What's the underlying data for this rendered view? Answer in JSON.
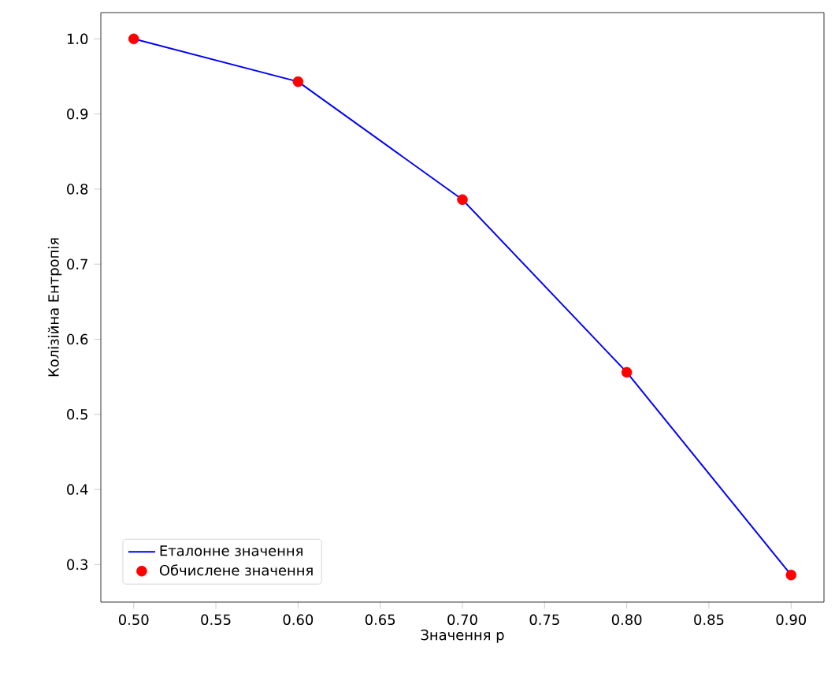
{
  "chart_data": {
    "type": "line",
    "xlabel": "Значення p",
    "ylabel": "Колізійна Ентропія",
    "x": [
      0.5,
      0.6,
      0.7,
      0.8,
      0.9
    ],
    "series": [
      {
        "name": "Еталонне значення",
        "color": "#0000ff",
        "marker": "none",
        "values": [
          1.0,
          0.943,
          0.786,
          0.556,
          0.286
        ]
      },
      {
        "name": "Обчислене значення",
        "type": "scatter",
        "color": "#ff0000",
        "marker": "circle",
        "values": [
          1.0,
          0.943,
          0.786,
          0.556,
          0.286
        ]
      }
    ],
    "xlim": [
      0.48,
      0.92
    ],
    "ylim": [
      0.25,
      1.035
    ],
    "xticks": [
      {
        "value": 0.5,
        "label": "0.50"
      },
      {
        "value": 0.55,
        "label": "0.55"
      },
      {
        "value": 0.6,
        "label": "0.60"
      },
      {
        "value": 0.65,
        "label": "0.65"
      },
      {
        "value": 0.7,
        "label": "0.70"
      },
      {
        "value": 0.75,
        "label": "0.75"
      },
      {
        "value": 0.8,
        "label": "0.80"
      },
      {
        "value": 0.85,
        "label": "0.85"
      },
      {
        "value": 0.9,
        "label": "0.90"
      }
    ],
    "yticks": [
      {
        "value": 0.3,
        "label": "0.3"
      },
      {
        "value": 0.4,
        "label": "0.4"
      },
      {
        "value": 0.5,
        "label": "0.5"
      },
      {
        "value": 0.6,
        "label": "0.6"
      },
      {
        "value": 0.7,
        "label": "0.7"
      },
      {
        "value": 0.8,
        "label": "0.8"
      },
      {
        "value": 0.9,
        "label": "0.9"
      },
      {
        "value": 1.0,
        "label": "1.0"
      }
    ],
    "grid": false,
    "legend": "bottom left"
  }
}
